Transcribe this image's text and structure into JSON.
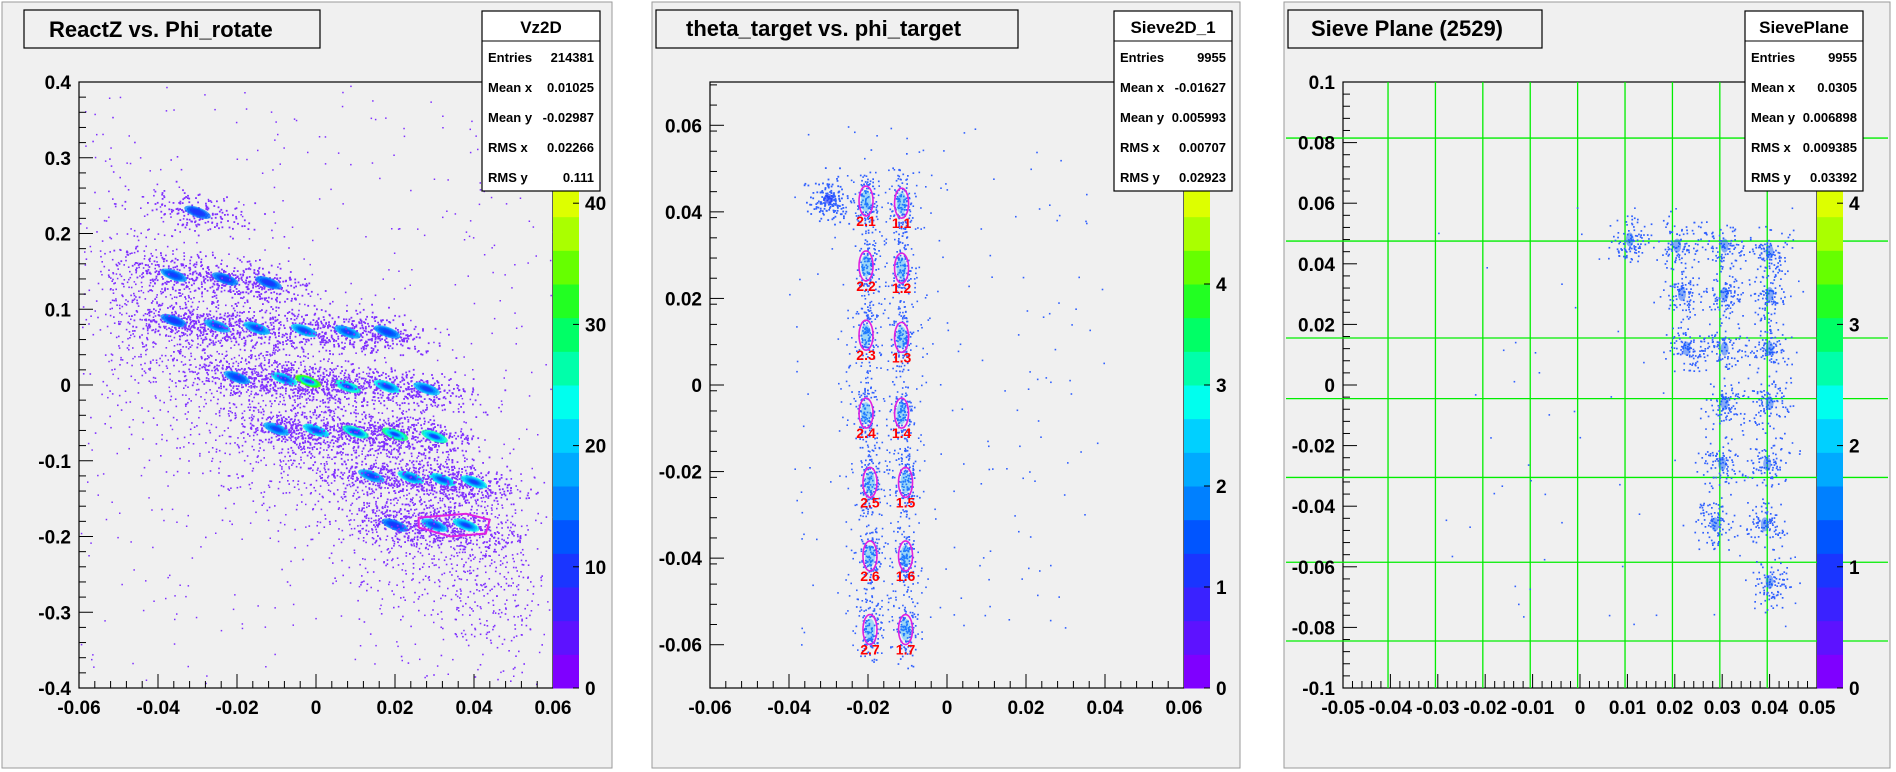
{
  "chart_data": [
    {
      "type": "heatmap",
      "title": "ReactZ vs. Phi_rotate",
      "stats_box": {
        "name": "Vz2D",
        "rows": [
          {
            "label": "Entries",
            "value": "214381"
          },
          {
            "label": "Mean x",
            "value": "0.01025"
          },
          {
            "label": "Mean y",
            "value": "-0.02987"
          },
          {
            "label": "RMS x",
            "value": "0.02266"
          },
          {
            "label": "RMS y",
            "value": "0.111"
          }
        ]
      },
      "xlim": [
        -0.06,
        0.06
      ],
      "ylim": [
        -0.4,
        0.4
      ],
      "x_ticks": [
        "-0.06",
        "-0.04",
        "-0.02",
        "0",
        "0.02",
        "0.04",
        "0.06"
      ],
      "y_ticks": [
        "-0.4",
        "-0.3",
        "-0.2",
        "-0.1",
        "0",
        "0.1",
        "0.2",
        "0.3",
        "0.4"
      ],
      "z_ticks": [
        "0",
        "10",
        "20",
        "30",
        "40"
      ],
      "z_range": [
        0,
        50
      ],
      "grid": false,
      "clusters": [
        {
          "x": -0.03,
          "y": 0.228,
          "level": 0.25
        },
        {
          "x": -0.036,
          "y": 0.145,
          "level": 0.35
        },
        {
          "x": -0.023,
          "y": 0.14,
          "level": 0.3
        },
        {
          "x": -0.012,
          "y": 0.135,
          "level": 0.3
        },
        {
          "x": -0.036,
          "y": 0.085,
          "level": 0.3
        },
        {
          "x": -0.025,
          "y": 0.078,
          "level": 0.4
        },
        {
          "x": -0.015,
          "y": 0.075,
          "level": 0.45
        },
        {
          "x": -0.003,
          "y": 0.072,
          "level": 0.45
        },
        {
          "x": 0.008,
          "y": 0.07,
          "level": 0.4
        },
        {
          "x": 0.018,
          "y": 0.07,
          "level": 0.35
        },
        {
          "x": -0.02,
          "y": 0.01,
          "level": 0.35
        },
        {
          "x": -0.008,
          "y": 0.008,
          "level": 0.5
        },
        {
          "x": -0.002,
          "y": 0.005,
          "level": 0.95
        },
        {
          "x": 0.008,
          "y": -0.002,
          "level": 0.65
        },
        {
          "x": 0.018,
          "y": -0.002,
          "level": 0.55
        },
        {
          "x": 0.028,
          "y": -0.005,
          "level": 0.45
        },
        {
          "x": -0.01,
          "y": -0.058,
          "level": 0.4
        },
        {
          "x": 0.0,
          "y": -0.06,
          "level": 0.5
        },
        {
          "x": 0.01,
          "y": -0.062,
          "level": 0.6
        },
        {
          "x": 0.02,
          "y": -0.065,
          "level": 0.75
        },
        {
          "x": 0.03,
          "y": -0.068,
          "level": 0.65
        },
        {
          "x": 0.014,
          "y": -0.12,
          "level": 0.4
        },
        {
          "x": 0.024,
          "y": -0.122,
          "level": 0.5
        },
        {
          "x": 0.032,
          "y": -0.125,
          "level": 0.55
        },
        {
          "x": 0.04,
          "y": -0.128,
          "level": 0.55
        },
        {
          "x": 0.02,
          "y": -0.185,
          "level": 0.3
        },
        {
          "x": 0.03,
          "y": -0.185,
          "level": 0.45
        },
        {
          "x": 0.038,
          "y": -0.185,
          "level": 0.5
        }
      ],
      "cut_polygon": [
        {
          "x": 0.026,
          "y": -0.175
        },
        {
          "x": 0.038,
          "y": -0.17
        },
        {
          "x": 0.044,
          "y": -0.178
        },
        {
          "x": 0.043,
          "y": -0.196
        },
        {
          "x": 0.034,
          "y": -0.2
        },
        {
          "x": 0.026,
          "y": -0.188
        }
      ],
      "colors": {
        "marker": "#7f2fff",
        "cut": "#e020e0"
      }
    },
    {
      "type": "heatmap",
      "title": "theta_target vs. phi_target",
      "stats_box": {
        "name": "Sieve2D_1",
        "rows": [
          {
            "label": "Entries",
            "value": "9955"
          },
          {
            "label": "Mean x",
            "value": "-0.01627"
          },
          {
            "label": "Mean y",
            "value": "0.005993"
          },
          {
            "label": "RMS x",
            "value": "0.00707"
          },
          {
            "label": "RMS y",
            "value": "0.02923"
          }
        ]
      },
      "xlim": [
        -0.06,
        0.06
      ],
      "ylim": [
        -0.07,
        0.07
      ],
      "x_ticks": [
        "-0.06",
        "-0.04",
        "-0.02",
        "0",
        "0.02",
        "0.04",
        "0.06"
      ],
      "y_ticks": [
        "-0.06",
        "-0.04",
        "-0.02",
        "0",
        "0.02",
        "0.04",
        "0.06"
      ],
      "z_ticks": [
        "0",
        "1",
        "2",
        "3",
        "4",
        "5"
      ],
      "z_range": [
        0,
        6
      ],
      "grid": false,
      "holes": [
        {
          "label": "2.1",
          "x": -0.0205,
          "y": 0.0425
        },
        {
          "label": "1.1",
          "x": -0.0115,
          "y": 0.042
        },
        {
          "label": "2.2",
          "x": -0.0205,
          "y": 0.0275
        },
        {
          "label": "1.2",
          "x": -0.0115,
          "y": 0.027
        },
        {
          "label": "2.3",
          "x": -0.0205,
          "y": 0.0115
        },
        {
          "label": "1.3",
          "x": -0.0115,
          "y": 0.011
        },
        {
          "label": "2.4",
          "x": -0.0205,
          "y": -0.0065
        },
        {
          "label": "1.4",
          "x": -0.0115,
          "y": -0.0065
        },
        {
          "label": "2.5",
          "x": -0.0195,
          "y": -0.0225
        },
        {
          "label": "1.5",
          "x": -0.0105,
          "y": -0.0225
        },
        {
          "label": "2.6",
          "x": -0.0195,
          "y": -0.0395
        },
        {
          "label": "1.6",
          "x": -0.0105,
          "y": -0.0395
        },
        {
          "label": "2.7",
          "x": -0.0195,
          "y": -0.0565
        },
        {
          "label": "1.7",
          "x": -0.0105,
          "y": -0.0565
        }
      ],
      "extra_cluster": {
        "x": -0.03,
        "y": 0.043
      },
      "colors": {
        "marker": "#3060ff",
        "cut": "#e020e0",
        "label": "#ff0000"
      }
    },
    {
      "type": "heatmap",
      "title": "Sieve Plane (2529)",
      "stats_box": {
        "name": "SievePlane",
        "rows": [
          {
            "label": "Entries",
            "value": "9955"
          },
          {
            "label": "Mean x",
            "value": "0.0305"
          },
          {
            "label": "Mean y",
            "value": "0.006898"
          },
          {
            "label": "RMS x",
            "value": "0.009385"
          },
          {
            "label": "RMS y",
            "value": "0.03392"
          }
        ]
      },
      "xlim": [
        -0.05,
        0.05
      ],
      "ylim": [
        -0.1,
        0.1
      ],
      "x_ticks": [
        "-0.05",
        "-0.04",
        "-0.03",
        "-0.02",
        "-0.01",
        "0",
        "0.01",
        "0.02",
        "0.03",
        "0.04",
        "0.05"
      ],
      "y_ticks": [
        "-0.1",
        "-0.08",
        "-0.06",
        "-0.04",
        "-0.02",
        "0",
        "0.02",
        "0.04",
        "0.06",
        "0.08",
        "0.1"
      ],
      "z_ticks": [
        "0",
        "1",
        "2",
        "3",
        "4"
      ],
      "z_range": [
        0,
        5
      ],
      "grid_x": [
        -0.0405,
        -0.0305,
        -0.0205,
        -0.0105,
        -0.0005,
        0.0095,
        0.0195,
        0.0295,
        0.0395
      ],
      "grid_y": [
        0.0815,
        0.0475,
        0.0155,
        -0.0045,
        -0.0305,
        -0.0585,
        -0.0845
      ],
      "clusters": [
        {
          "x": 0.0105,
          "y": 0.048
        },
        {
          "x": 0.0205,
          "y": 0.046
        },
        {
          "x": 0.0305,
          "y": 0.046
        },
        {
          "x": 0.04,
          "y": 0.044
        },
        {
          "x": 0.0215,
          "y": 0.03
        },
        {
          "x": 0.0305,
          "y": 0.03
        },
        {
          "x": 0.04,
          "y": 0.03
        },
        {
          "x": 0.0225,
          "y": 0.012
        },
        {
          "x": 0.0305,
          "y": 0.012
        },
        {
          "x": 0.04,
          "y": 0.012
        },
        {
          "x": 0.0305,
          "y": -0.006
        },
        {
          "x": 0.04,
          "y": -0.006
        },
        {
          "x": 0.03,
          "y": -0.026
        },
        {
          "x": 0.0395,
          "y": -0.026
        },
        {
          "x": 0.0285,
          "y": -0.046
        },
        {
          "x": 0.039,
          "y": -0.046
        },
        {
          "x": 0.04,
          "y": -0.065
        }
      ],
      "colors": {
        "marker": "#3060ff",
        "grid": "#00ee00"
      }
    }
  ],
  "palette": [
    "#7f00ff",
    "#5d12ff",
    "#3a22ff",
    "#1a35ff",
    "#0055ff",
    "#0080ff",
    "#00aaff",
    "#00d0ff",
    "#00ffee",
    "#00ffaa",
    "#00ff66",
    "#22ff22",
    "#66ff00",
    "#aaff00",
    "#ddff00",
    "#ffff00",
    "#ffcc00",
    "#ff9900"
  ]
}
